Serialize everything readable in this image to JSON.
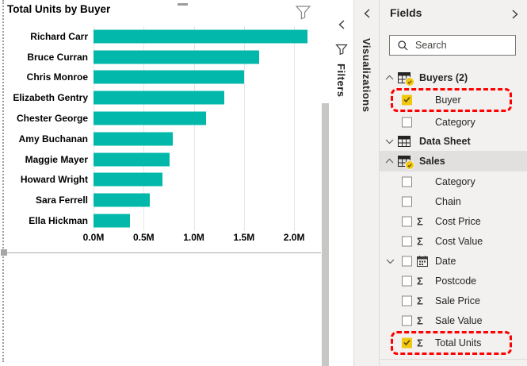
{
  "chart_data": {
    "type": "bar",
    "orientation": "horizontal",
    "title": "Total Units by Buyer",
    "categories": [
      "Richard Carr",
      "Bruce Curran",
      "Chris Monroe",
      "Elizabeth Gentry",
      "Chester George",
      "Amy Buchanan",
      "Maggie Mayer",
      "Howard Wright",
      "Sara Ferrell",
      "Ella Hickman"
    ],
    "values_millions": [
      2.13,
      1.65,
      1.5,
      1.3,
      1.12,
      0.79,
      0.76,
      0.69,
      0.56,
      0.36
    ],
    "x_ticks": [
      "0.0M",
      "0.5M",
      "1.0M",
      "1.5M",
      "2.0M"
    ],
    "x_tick_values": [
      0,
      0.5,
      1.0,
      1.5,
      2.0
    ],
    "xlim": [
      0,
      2.22
    ],
    "ylabel": "",
    "xlabel": "",
    "grid": true,
    "legend": "none",
    "bar_color": "#01B8AA"
  },
  "panels": {
    "filters": {
      "label": "Filters"
    },
    "visualizations": {
      "label": "Visualizations"
    },
    "fields": {
      "title": "Fields",
      "search_placeholder": "Search",
      "tree": [
        {
          "label": "Buyers (2)",
          "type": "table",
          "expanded": true,
          "checked_badge": true,
          "selected": false,
          "children": [
            {
              "label": "Buyer",
              "checked": true,
              "icon": "none",
              "red_outline": true
            },
            {
              "label": "Category",
              "checked": false,
              "icon": "none"
            }
          ]
        },
        {
          "label": "Data Sheet",
          "type": "table",
          "expanded": false,
          "checked_badge": false,
          "selected": false,
          "children": []
        },
        {
          "label": "Sales",
          "type": "table",
          "expanded": true,
          "checked_badge": true,
          "selected": true,
          "children": [
            {
              "label": "Category",
              "checked": false,
              "icon": "none"
            },
            {
              "label": "Chain",
              "checked": false,
              "icon": "none"
            },
            {
              "label": "Cost Price",
              "checked": false,
              "icon": "sigma"
            },
            {
              "label": "Cost Value",
              "checked": false,
              "icon": "sigma"
            },
            {
              "label": "Date",
              "checked": false,
              "icon": "calendar",
              "expandable": true
            },
            {
              "label": "Postcode",
              "checked": false,
              "icon": "sigma"
            },
            {
              "label": "Sale Price",
              "checked": false,
              "icon": "sigma"
            },
            {
              "label": "Sale Value",
              "checked": false,
              "icon": "sigma"
            },
            {
              "label": "Total Units",
              "checked": true,
              "icon": "sigma",
              "red_outline": true
            }
          ]
        }
      ]
    }
  },
  "colors": {
    "bar": "#01B8AA",
    "check_yellow": "#F2C80F",
    "check_mark": "#584D00",
    "red_annotation": "#FE0000",
    "selected_row": "#E2E0DE"
  }
}
